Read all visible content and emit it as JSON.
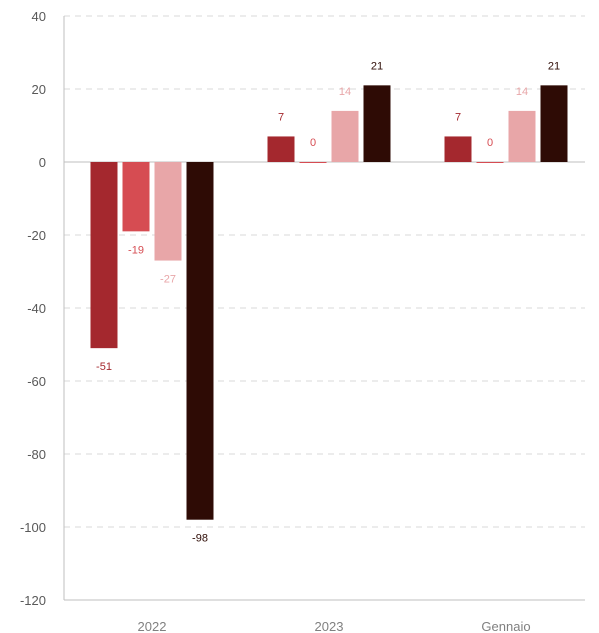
{
  "chart_data": {
    "type": "bar",
    "categories": [
      "2022",
      "2023",
      "Gennaio"
    ],
    "series": [
      {
        "color": "#a4282e",
        "values": [
          -51,
          7,
          7
        ]
      },
      {
        "color": "#d64c52",
        "values": [
          -19,
          0,
          0
        ]
      },
      {
        "color": "#e8a6a8",
        "values": [
          -27,
          14,
          14
        ]
      },
      {
        "color": "#2e0b05",
        "values": [
          -98,
          21,
          21
        ]
      }
    ],
    "data_labels": [
      [
        "-51",
        "7",
        "7"
      ],
      [
        "-19",
        "0",
        "0"
      ],
      [
        "-27",
        "14",
        "14"
      ],
      [
        "-98",
        "21",
        "21"
      ]
    ],
    "title": "",
    "xlabel": "",
    "ylabel": "",
    "ylim": [
      -120,
      40
    ],
    "yticks": [
      40,
      20,
      0,
      -20,
      -40,
      -60,
      -80,
      -100,
      -120
    ],
    "ytick_labels": [
      "40",
      "20",
      "0",
      "-20",
      "-40",
      "-60",
      "-80",
      "-100",
      "-120"
    ],
    "grid": true,
    "gridline_color": "#d9d9d9",
    "axis_color": "#bfbfbf",
    "label_colors": [
      "#a4282e",
      "#d64c52",
      "#e8a6a8",
      "#2e0b05"
    ]
  }
}
